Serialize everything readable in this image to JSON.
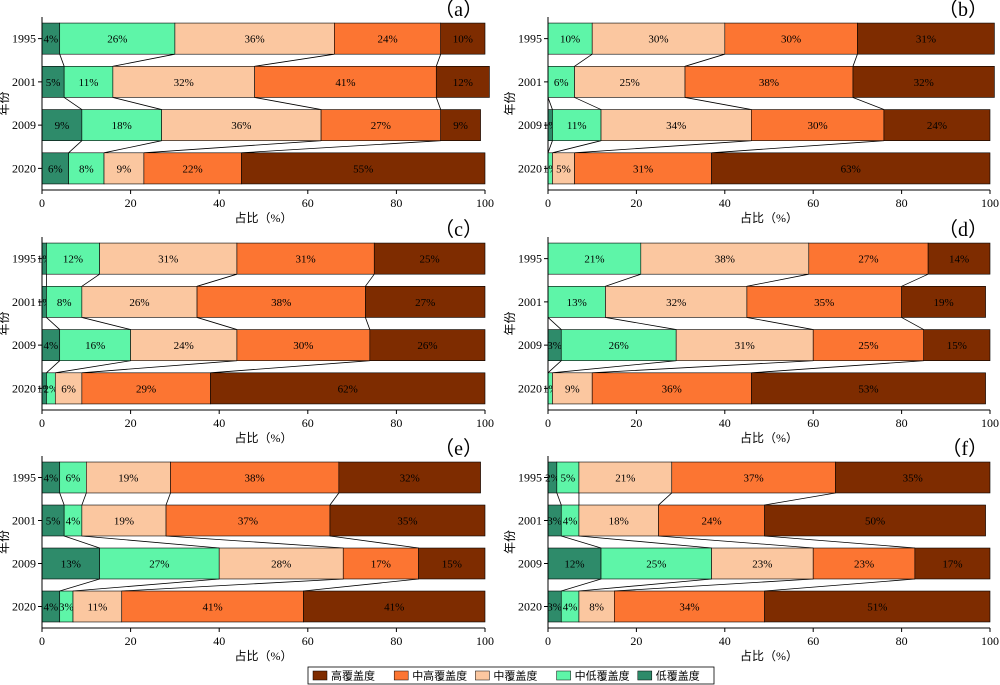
{
  "chart_data": [
    {
      "type": "bar",
      "panel_label": "（a）",
      "categories": [
        "1995",
        "2001",
        "2009",
        "2020"
      ],
      "series": [
        {
          "name": "低覆盖度",
          "color": "#2E8B6A",
          "values": [
            4,
            5,
            9,
            6
          ]
        },
        {
          "name": "中低覆盖度",
          "color": "#5EF5A8",
          "values": [
            26,
            11,
            18,
            8
          ]
        },
        {
          "name": "中覆盖度",
          "color": "#FBC7A0",
          "values": [
            36,
            32,
            36,
            9
          ]
        },
        {
          "name": "中高覆盖度",
          "color": "#FC7532",
          "values": [
            24,
            41,
            27,
            22
          ]
        },
        {
          "name": "高覆盖度",
          "color": "#7E2C00",
          "values": [
            10,
            12,
            9,
            55
          ]
        }
      ],
      "xlabel": "占比（%）",
      "ylabel": "年份",
      "xlim": [
        0,
        100
      ],
      "xticks": [
        "0",
        "20",
        "40",
        "60",
        "80",
        "100"
      ]
    },
    {
      "type": "bar",
      "panel_label": "（b）",
      "categories": [
        "1995",
        "2001",
        "2009",
        "2020"
      ],
      "series": [
        {
          "name": "低覆盖度",
          "color": "#2E8B6A",
          "values": [
            0,
            0,
            1,
            0
          ]
        },
        {
          "name": "中低覆盖度",
          "color": "#5EF5A8",
          "values": [
            10,
            6,
            11,
            1
          ]
        },
        {
          "name": "中覆盖度",
          "color": "#FBC7A0",
          "values": [
            30,
            25,
            34,
            5
          ]
        },
        {
          "name": "中高覆盖度",
          "color": "#FC7532",
          "values": [
            30,
            38,
            30,
            31
          ]
        },
        {
          "name": "高覆盖度",
          "color": "#7E2C00",
          "values": [
            31,
            32,
            24,
            63
          ]
        }
      ],
      "xlabel": "占比（%）",
      "ylabel": "年份",
      "xlim": [
        0,
        100
      ],
      "xticks": [
        "0",
        "20",
        "40",
        "60",
        "80",
        "100"
      ]
    },
    {
      "type": "bar",
      "panel_label": "（c）",
      "categories": [
        "1995",
        "2001",
        "2009",
        "2020"
      ],
      "series": [
        {
          "name": "低覆盖度",
          "color": "#2E8B6A",
          "values": [
            1,
            1,
            4,
            1
          ]
        },
        {
          "name": "中低覆盖度",
          "color": "#5EF5A8",
          "values": [
            12,
            8,
            16,
            2
          ]
        },
        {
          "name": "中覆盖度",
          "color": "#FBC7A0",
          "values": [
            31,
            26,
            24,
            6
          ]
        },
        {
          "name": "中高覆盖度",
          "color": "#FC7532",
          "values": [
            31,
            38,
            30,
            29
          ]
        },
        {
          "name": "高覆盖度",
          "color": "#7E2C00",
          "values": [
            25,
            27,
            26,
            62
          ]
        }
      ],
      "xlabel": "占比（%）",
      "ylabel": "年份",
      "xlim": [
        0,
        100
      ],
      "xticks": [
        "0",
        "20",
        "40",
        "60",
        "80",
        "100"
      ]
    },
    {
      "type": "bar",
      "panel_label": "（d）",
      "categories": [
        "1995",
        "2001",
        "2009",
        "2020"
      ],
      "series": [
        {
          "name": "低覆盖度",
          "color": "#2E8B6A",
          "values": [
            0,
            0,
            3,
            0
          ]
        },
        {
          "name": "中低覆盖度",
          "color": "#5EF5A8",
          "values": [
            21,
            13,
            26,
            1
          ]
        },
        {
          "name": "中覆盖度",
          "color": "#FBC7A0",
          "values": [
            38,
            32,
            31,
            9
          ]
        },
        {
          "name": "中高覆盖度",
          "color": "#FC7532",
          "values": [
            27,
            35,
            25,
            36
          ]
        },
        {
          "name": "高覆盖度",
          "color": "#7E2C00",
          "values": [
            14,
            19,
            15,
            53
          ]
        }
      ],
      "xlabel": "占比（%）",
      "ylabel": "年份",
      "xlim": [
        0,
        100
      ],
      "xticks": [
        "0",
        "20",
        "40",
        "60",
        "80",
        "100"
      ]
    },
    {
      "type": "bar",
      "panel_label": "（e）",
      "categories": [
        "1995",
        "2001",
        "2009",
        "2020"
      ],
      "series": [
        {
          "name": "低覆盖度",
          "color": "#2E8B6A",
          "values": [
            4,
            5,
            13,
            4
          ]
        },
        {
          "name": "中低覆盖度",
          "color": "#5EF5A8",
          "values": [
            6,
            4,
            27,
            3
          ]
        },
        {
          "name": "中覆盖度",
          "color": "#FBC7A0",
          "values": [
            19,
            19,
            28,
            11
          ]
        },
        {
          "name": "中高覆盖度",
          "color": "#FC7532",
          "values": [
            38,
            37,
            17,
            41
          ]
        },
        {
          "name": "高覆盖度",
          "color": "#7E2C00",
          "values": [
            32,
            35,
            15,
            41
          ]
        }
      ],
      "xlabel": "占比（%）",
      "ylabel": "年份",
      "xlim": [
        0,
        100
      ],
      "xticks": [
        "0",
        "20",
        "40",
        "60",
        "80",
        "100"
      ]
    },
    {
      "type": "bar",
      "panel_label": "（f）",
      "categories": [
        "1995",
        "2001",
        "2009",
        "2020"
      ],
      "series": [
        {
          "name": "低覆盖度",
          "color": "#2E8B6A",
          "values": [
            2,
            3,
            12,
            3
          ]
        },
        {
          "name": "中低覆盖度",
          "color": "#5EF5A8",
          "values": [
            5,
            4,
            25,
            4
          ]
        },
        {
          "name": "中覆盖度",
          "color": "#FBC7A0",
          "values": [
            21,
            18,
            23,
            8
          ]
        },
        {
          "name": "中高覆盖度",
          "color": "#FC7532",
          "values": [
            37,
            24,
            23,
            34
          ]
        },
        {
          "name": "高覆盖度",
          "color": "#7E2C00",
          "values": [
            35,
            50,
            17,
            51
          ]
        }
      ],
      "xlabel": "占比（%）",
      "ylabel": "年份",
      "xlim": [
        0,
        100
      ],
      "xticks": [
        "0",
        "20",
        "40",
        "60",
        "80",
        "100"
      ]
    }
  ],
  "legend": {
    "placement": "bottom-center",
    "items": [
      {
        "label": "高覆盖度",
        "color": "#7E2C00"
      },
      {
        "label": "中高覆盖度",
        "color": "#FC7532"
      },
      {
        "label": "中覆盖度",
        "color": "#FBC7A0"
      },
      {
        "label": "中低覆盖度",
        "color": "#5EF5A8"
      },
      {
        "label": "低覆盖度",
        "color": "#2E8B6A"
      }
    ]
  }
}
